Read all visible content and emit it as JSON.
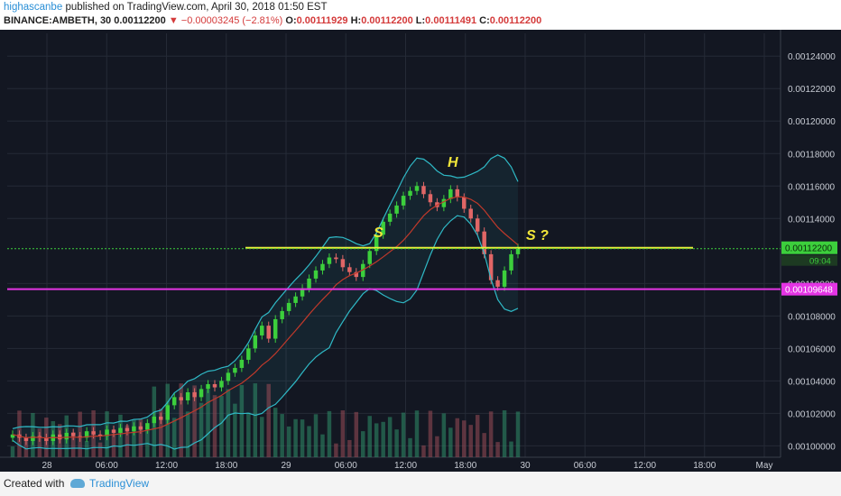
{
  "header": {
    "author": "highascanbe",
    "published_text": "published on TradingView.com, April 30, 2018 01:50 EST",
    "symbol": "BINANCE:AMBETH, 30",
    "last": "0.00112200",
    "down_arrow": "▼",
    "change": "−0.00003245 (−2.81%)",
    "o_label": "O:",
    "o": "0.00111929",
    "h_label": "H:",
    "h": "0.00112200",
    "l_label": "L:",
    "l": "0.00111491",
    "c_label": "C:",
    "c": "0.00112200"
  },
  "footer": {
    "created_with": "Created with",
    "brand": "TradingView"
  },
  "colors": {
    "background": "#131722",
    "up": "#3ccf3c",
    "down": "#e06666",
    "ma": "#c0392b",
    "bollinger": "#2fb9c6",
    "neckline": "#e8ef3a",
    "support": "#e434e4",
    "annotation": "#f2e63a"
  },
  "chart_data": {
    "type": "candlestick",
    "symbol": "BINANCE:AMBETH",
    "interval": "30",
    "ylim": [
      0.000993,
      0.001254
    ],
    "y_ticks": [
      "0.00124000",
      "0.00122000",
      "0.00120000",
      "0.00118000",
      "0.00116000",
      "0.00114000",
      "0.00110000",
      "0.00108000",
      "0.00106000",
      "0.00104000",
      "0.00102000",
      "0.00100000"
    ],
    "x_ticks": [
      "28",
      "06:00",
      "12:00",
      "18:00",
      "29",
      "06:00",
      "12:00",
      "18:00",
      "30",
      "06:00",
      "12:00",
      "18:00",
      "May"
    ],
    "grid": true,
    "price_labels": [
      {
        "value": 0.001122,
        "text": "0.00112200",
        "color": "#3ccf3c"
      },
      {
        "value": 0.00109648,
        "text": "0.00109648",
        "color": "#e434e4"
      }
    ],
    "countdown": "09:04",
    "horizontal_lines": [
      {
        "name": "neckline",
        "value": 0.001122,
        "color": "#e8ef3a"
      },
      {
        "name": "support",
        "value": 0.00109648,
        "color": "#e434e4"
      }
    ],
    "annotations": [
      {
        "text": "H"
      },
      {
        "text": "S"
      },
      {
        "text": "S ?"
      }
    ],
    "approx_close_path": [
      0.001007,
      0.001005,
      0.001003,
      0.001006,
      0.001005,
      0.001003,
      0.001007,
      0.001004,
      0.001008,
      0.001006,
      0.001005,
      0.001009,
      0.001007,
      0.001006,
      0.00101,
      0.001008,
      0.001011,
      0.001009,
      0.001012,
      0.00101,
      0.001014,
      0.001018,
      0.001016,
      0.001025,
      0.00103,
      0.001028,
      0.001033,
      0.00103,
      0.001035,
      0.001038,
      0.001036,
      0.00104,
      0.001045,
      0.001048,
      0.001053,
      0.00106,
      0.001068,
      0.001074,
      0.001066,
      0.001078,
      0.001083,
      0.001088,
      0.001092,
      0.001097,
      0.001103,
      0.001108,
      0.001112,
      0.001116,
      0.001115,
      0.00111,
      0.001107,
      0.001104,
      0.001112,
      0.00112,
      0.00113,
      0.001138,
      0.001143,
      0.001148,
      0.001154,
      0.001157,
      0.00116,
      0.001155,
      0.00115,
      0.001147,
      0.001152,
      0.001158,
      0.001153,
      0.001146,
      0.00114,
      0.001132,
      0.001118,
      0.001102,
      0.001098,
      0.001108,
      0.001118,
      0.001122
    ]
  }
}
